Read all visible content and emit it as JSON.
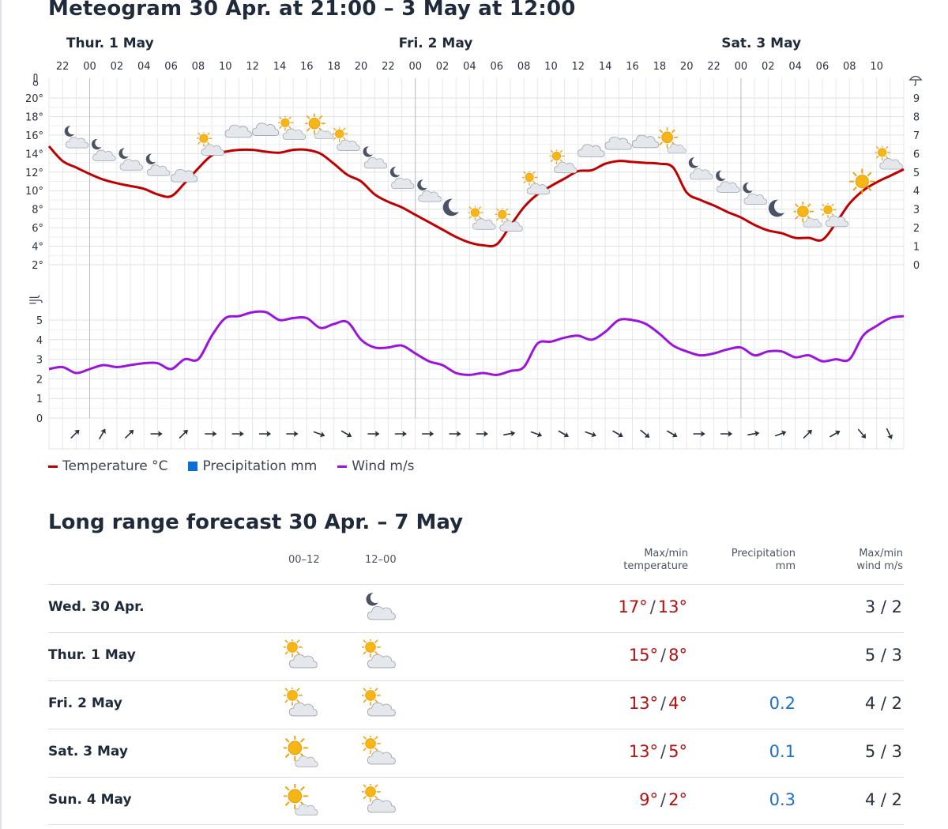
{
  "meteogram": {
    "title": "Meteogram 30 Apr. at 21:00 – 3 May at 12:00",
    "days": [
      "Thur. 1 May",
      "Fri. 2 May",
      "Sat. 3 May"
    ],
    "hours": [
      "22",
      "00",
      "02",
      "04",
      "06",
      "08",
      "10",
      "12",
      "14",
      "16",
      "18",
      "20",
      "22",
      "00",
      "02",
      "04",
      "06",
      "08",
      "10",
      "12",
      "14",
      "16",
      "18",
      "20",
      "22",
      "00",
      "02",
      "04",
      "06",
      "08",
      "10"
    ],
    "legend": [
      {
        "label": "Temperature °C",
        "color": "#c00000",
        "kind": "line"
      },
      {
        "label": "Precipitation mm",
        "color": "#0b6fd6",
        "kind": "box"
      },
      {
        "label": "Wind m/s",
        "color": "#9a14de",
        "kind": "line"
      }
    ]
  },
  "chart_data": {
    "type": "line",
    "x": [
      "21",
      "22",
      "23",
      "00",
      "01",
      "02",
      "03",
      "04",
      "05",
      "06",
      "07",
      "08",
      "09",
      "10",
      "11",
      "12",
      "13",
      "14",
      "15",
      "16",
      "17",
      "18",
      "19",
      "20",
      "21",
      "22",
      "23",
      "00",
      "01",
      "02",
      "03",
      "04",
      "05",
      "06",
      "07",
      "08",
      "09",
      "10",
      "11",
      "12",
      "13",
      "14",
      "15",
      "16",
      "17",
      "18",
      "19",
      "20",
      "21",
      "22",
      "23",
      "00",
      "01",
      "02",
      "03",
      "04",
      "05",
      "06",
      "07",
      "08",
      "09",
      "10",
      "11",
      "12"
    ],
    "temperature_axis": {
      "ticks": [
        "2°",
        "4°",
        "6°",
        "8°",
        "10°",
        "12°",
        "14°",
        "16°",
        "18°",
        "20°"
      ],
      "ylim": [
        2,
        20
      ]
    },
    "precipitation_axis": {
      "ticks": [
        "0",
        "1",
        "2",
        "3",
        "4",
        "5",
        "6",
        "7",
        "8",
        "9"
      ],
      "ylim": [
        0,
        9
      ]
    },
    "wind_axis": {
      "ticks": [
        "0",
        "1",
        "2",
        "3",
        "4",
        "5"
      ],
      "ylim": [
        0,
        5
      ]
    },
    "series": [
      {
        "name": "Temperature °C",
        "color": "#c00000",
        "values": [
          14.8,
          13.2,
          12.5,
          11.8,
          11.2,
          10.8,
          10.5,
          10.2,
          9.6,
          9.4,
          10.8,
          12.4,
          13.8,
          14.2,
          14.4,
          14.4,
          14.2,
          14.1,
          14.4,
          14.4,
          14.0,
          12.9,
          11.7,
          11.0,
          9.6,
          8.8,
          8.2,
          7.4,
          6.6,
          5.8,
          5.0,
          4.4,
          4.1,
          4.2,
          6.2,
          8.2,
          9.6,
          10.5,
          11.3,
          12.1,
          12.2,
          12.9,
          13.2,
          13.1,
          13.0,
          12.9,
          12.5,
          9.8,
          9.0,
          8.4,
          7.7,
          7.1,
          6.3,
          5.7,
          5.4,
          4.9,
          4.9,
          4.7,
          6.5,
          8.6,
          10.0,
          10.9,
          11.6,
          12.3
        ]
      },
      {
        "name": "Wind m/s",
        "color": "#9a14de",
        "values": [
          2.5,
          2.6,
          2.3,
          2.5,
          2.7,
          2.6,
          2.7,
          2.8,
          2.8,
          2.5,
          3.0,
          3.0,
          4.2,
          5.1,
          5.2,
          5.4,
          5.4,
          5.0,
          5.1,
          5.1,
          4.6,
          4.8,
          4.9,
          4.0,
          3.6,
          3.6,
          3.7,
          3.3,
          2.9,
          2.7,
          2.3,
          2.2,
          2.3,
          2.2,
          2.4,
          2.6,
          3.8,
          3.9,
          4.1,
          4.2,
          4.0,
          4.4,
          5.0,
          5.0,
          4.8,
          4.3,
          3.7,
          3.4,
          3.2,
          3.3,
          3.5,
          3.6,
          3.2,
          3.4,
          3.4,
          3.1,
          3.2,
          2.9,
          3.0,
          3.0,
          4.2,
          4.7,
          5.1,
          5.2
        ]
      }
    ],
    "weather_symbols": [
      {
        "hour": "22",
        "type": "night-cloud"
      },
      {
        "hour": "00",
        "type": "night-cloud"
      },
      {
        "hour": "02",
        "type": "night-cloud"
      },
      {
        "hour": "04",
        "type": "night-cloud"
      },
      {
        "hour": "06",
        "type": "cloud"
      },
      {
        "hour": "08",
        "type": "sun-cloud"
      },
      {
        "hour": "10",
        "type": "cloud"
      },
      {
        "hour": "12",
        "type": "cloud"
      },
      {
        "hour": "14",
        "type": "sun-cloud"
      },
      {
        "hour": "16",
        "type": "sun-cloud-bright"
      },
      {
        "hour": "18",
        "type": "sun-cloud"
      },
      {
        "hour": "20",
        "type": "night-cloud"
      },
      {
        "hour": "22",
        "type": "night-cloud"
      },
      {
        "hour": "00",
        "type": "night-cloud"
      },
      {
        "hour": "02",
        "type": "moon"
      },
      {
        "hour": "04",
        "type": "sun-cloud"
      },
      {
        "hour": "06",
        "type": "sun-cloud"
      },
      {
        "hour": "08",
        "type": "sun-cloud"
      },
      {
        "hour": "10",
        "type": "sun-cloud"
      },
      {
        "hour": "12",
        "type": "cloud"
      },
      {
        "hour": "14",
        "type": "cloud"
      },
      {
        "hour": "16",
        "type": "cloud"
      },
      {
        "hour": "18",
        "type": "sun-cloud-bright"
      },
      {
        "hour": "20",
        "type": "night-cloud"
      },
      {
        "hour": "22",
        "type": "night-cloud"
      },
      {
        "hour": "00",
        "type": "night-cloud"
      },
      {
        "hour": "02",
        "type": "moon"
      },
      {
        "hour": "04",
        "type": "sun-cloud-bright"
      },
      {
        "hour": "06",
        "type": "sun-cloud"
      },
      {
        "hour": "08",
        "type": "sun"
      },
      {
        "hour": "10",
        "type": "sun-cloud"
      }
    ],
    "wind_direction_arrows_deg": [
      45,
      30,
      45,
      90,
      45,
      90,
      90,
      90,
      90,
      110,
      120,
      90,
      90,
      90,
      90,
      90,
      80,
      110,
      120,
      110,
      120,
      130,
      120,
      90,
      90,
      80,
      70,
      45,
      60,
      140,
      155
    ],
    "grid": true
  },
  "long_range": {
    "title": "Long range forecast 30 Apr. – 7 May",
    "headers": {
      "period1": "00–12",
      "period2": "12–00",
      "temp_line1": "Max/min",
      "temp_line2": "temperature",
      "precip_line1": "Precipitation",
      "precip_line2": "mm",
      "wind_line1": "Max/min",
      "wind_line2": "wind m/s"
    },
    "rows": [
      {
        "day": "Wed. 30 Apr.",
        "icon_am": "",
        "icon_pm": "night-cloud",
        "max": "17°",
        "min": "13°",
        "sep": "/",
        "precip": "",
        "wind": "3 / 2"
      },
      {
        "day": "Thur. 1 May",
        "icon_am": "sun-cloud",
        "icon_pm": "sun-cloud",
        "max": "15°",
        "min": "8°",
        "sep": "/",
        "precip": "",
        "wind": "5 / 3"
      },
      {
        "day": "Fri. 2 May",
        "icon_am": "sun-cloud",
        "icon_pm": "sun-cloud",
        "max": "13°",
        "min": "4°",
        "sep": "/",
        "precip": "0.2",
        "wind": "4 / 2"
      },
      {
        "day": "Sat. 3 May",
        "icon_am": "sun-cloud-bright",
        "icon_pm": "sun-cloud",
        "max": "13°",
        "min": "5°",
        "sep": "/",
        "precip": "0.1",
        "wind": "5 / 3"
      },
      {
        "day": "Sun. 4 May",
        "icon_am": "sun-cloud-bright",
        "icon_pm": "sun-cloud",
        "max": "9°",
        "min": "2°",
        "sep": "/",
        "precip": "0.3",
        "wind": "4 / 2"
      }
    ]
  }
}
